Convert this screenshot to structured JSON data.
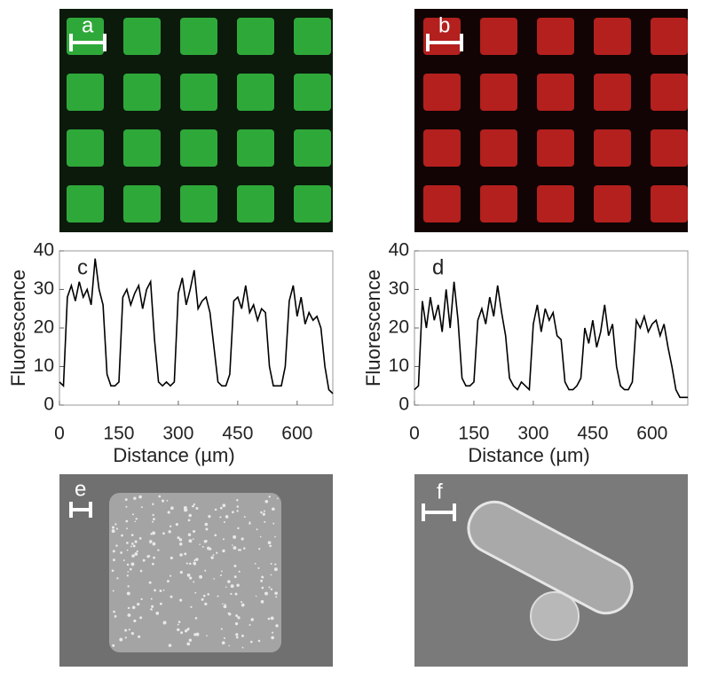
{
  "image_panels": [
    "a",
    "b",
    "e",
    "f"
  ],
  "chart_data": [
    {
      "type": "line",
      "title": "c",
      "xlabel": "Distance (µm)",
      "ylabel": "Fluorescence",
      "color": "#000000",
      "x": [
        0,
        10,
        20,
        30,
        40,
        50,
        60,
        70,
        80,
        90,
        100,
        110,
        120,
        130,
        140,
        150,
        160,
        170,
        180,
        190,
        200,
        210,
        220,
        230,
        240,
        250,
        260,
        270,
        280,
        290,
        300,
        310,
        320,
        330,
        340,
        350,
        360,
        370,
        380,
        390,
        400,
        410,
        420,
        430,
        440,
        450,
        460,
        470,
        480,
        490,
        500,
        510,
        520,
        530,
        540,
        550,
        560,
        570,
        580,
        590,
        600,
        610,
        620,
        630,
        640,
        650,
        660,
        670,
        680,
        690
      ],
      "values": [
        6,
        5,
        28,
        31,
        27,
        32,
        28,
        30,
        26,
        38,
        30,
        26,
        8,
        5,
        5,
        6,
        28,
        30,
        26,
        29,
        31,
        25,
        30,
        32,
        17,
        6,
        5,
        6,
        5,
        6,
        29,
        33,
        26,
        30,
        35,
        25,
        27,
        28,
        24,
        15,
        6,
        5,
        5,
        8,
        27,
        28,
        25,
        31,
        24,
        26,
        22,
        25,
        24,
        10,
        5,
        5,
        5,
        10,
        27,
        31,
        23,
        28,
        21,
        24,
        22,
        23,
        20,
        10,
        4,
        3
      ],
      "xlim": [
        0,
        690
      ],
      "ylim": [
        0,
        40
      ],
      "xticks": [
        0,
        150,
        300,
        450,
        600
      ],
      "yticks": [
        0,
        10,
        20,
        30,
        40
      ]
    },
    {
      "type": "line",
      "title": "d",
      "xlabel": "Distance (µm)",
      "ylabel": "Fluorescence",
      "color": "#000000",
      "x": [
        0,
        10,
        20,
        30,
        40,
        50,
        60,
        70,
        80,
        90,
        100,
        110,
        120,
        130,
        140,
        150,
        160,
        170,
        180,
        190,
        200,
        210,
        220,
        230,
        240,
        250,
        260,
        270,
        280,
        290,
        300,
        310,
        320,
        330,
        340,
        350,
        360,
        370,
        380,
        390,
        400,
        410,
        420,
        430,
        440,
        450,
        460,
        470,
        480,
        490,
        500,
        510,
        520,
        530,
        540,
        550,
        560,
        570,
        580,
        590,
        600,
        610,
        620,
        630,
        640,
        650,
        660,
        670,
        680,
        690
      ],
      "values": [
        4,
        5,
        27,
        20,
        28,
        22,
        26,
        19,
        30,
        20,
        32,
        22,
        7,
        5,
        5,
        6,
        22,
        25,
        21,
        28,
        23,
        31,
        24,
        18,
        7,
        5,
        4,
        6,
        5,
        4,
        21,
        26,
        19,
        25,
        22,
        24,
        18,
        17,
        6,
        4,
        4,
        5,
        7,
        20,
        16,
        22,
        15,
        19,
        26,
        18,
        21,
        10,
        5,
        4,
        4,
        6,
        22,
        20,
        23,
        19,
        21,
        22,
        18,
        21,
        15,
        10,
        4,
        2,
        2,
        2
      ],
      "xlim": [
        0,
        690
      ],
      "ylim": [
        0,
        40
      ],
      "xticks": [
        0,
        150,
        300,
        450,
        600
      ],
      "yticks": [
        0,
        10,
        20,
        30,
        40
      ]
    }
  ]
}
